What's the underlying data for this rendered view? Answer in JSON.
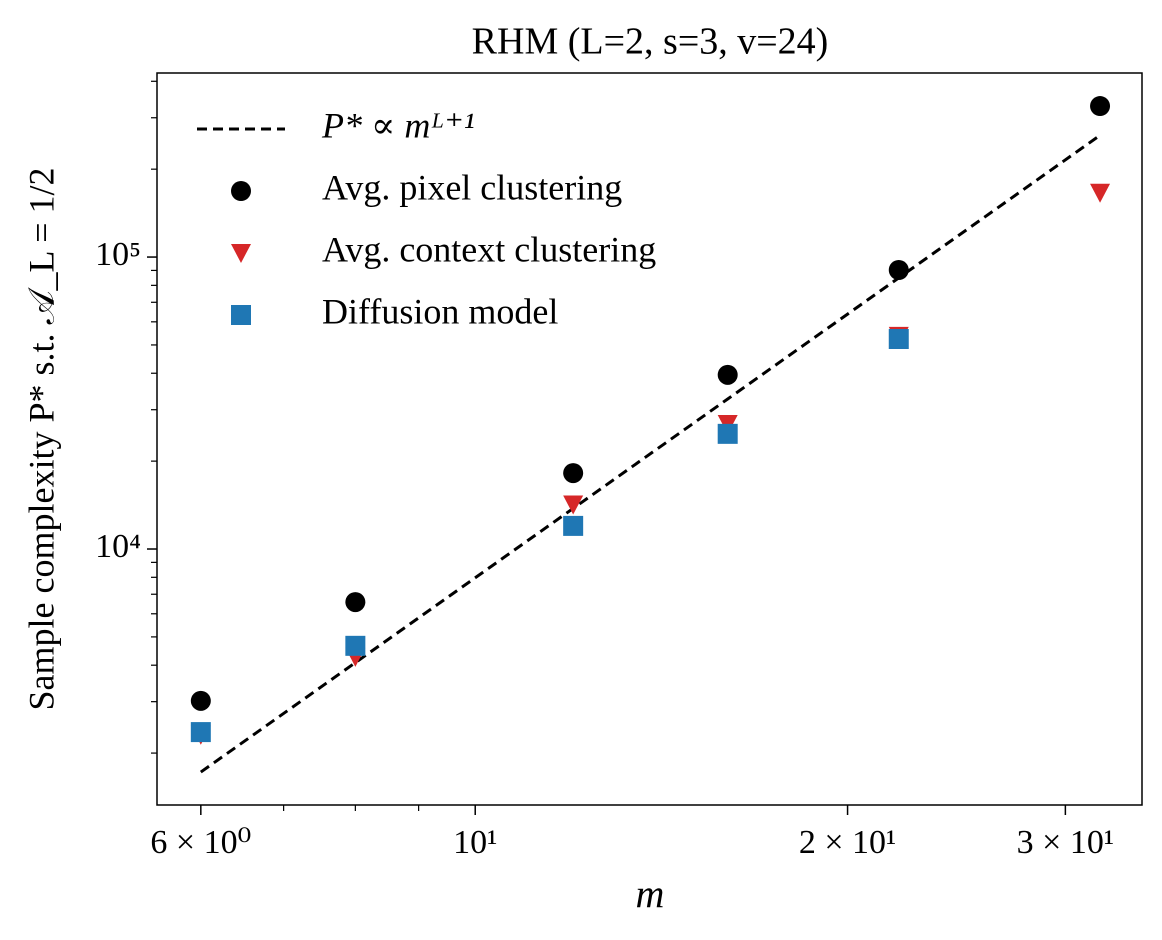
{
  "chart_data": {
    "type": "scatter",
    "title": "RHM (L=2, s=3, v=24)",
    "x_label": "m",
    "y_label": "Sample complexity P* s.t. 𝒜_L = 1/2",
    "x": [
      6,
      8,
      12,
      16,
      22,
      32
    ],
    "series": [
      {
        "name": "P* ∝ mᴸ⁺¹",
        "kind": "line",
        "color": "#000000",
        "values": [
          1722,
          4081,
          13774,
          32650,
          84870,
          261200
        ]
      },
      {
        "name": "Avg. pixel clustering",
        "kind": "circle",
        "color": "#000000",
        "values": [
          3020,
          6580,
          18200,
          39500,
          90300,
          329000
        ]
      },
      {
        "name": "Avg. context clustering",
        "kind": "triangle",
        "color": "#d62728",
        "values": [
          2310,
          4270,
          14200,
          26800,
          53700,
          166000
        ]
      },
      {
        "name": "Diffusion model",
        "kind": "square",
        "color": "#1f77b4",
        "values": [
          2360,
          4660,
          12000,
          24800,
          52400,
          null
        ]
      }
    ],
    "xlog": true,
    "ylog": true,
    "xlim": [
      5.53,
      34.6
    ],
    "ylim": [
      1328,
      427000
    ],
    "xticks": [
      {
        "value": 6,
        "label": "6 × 10⁰"
      },
      {
        "value": 10,
        "label": "10¹"
      },
      {
        "value": 20,
        "label": "2 × 10¹"
      },
      {
        "value": 30,
        "label": "3 × 10¹"
      }
    ],
    "xminor": [
      7,
      8,
      9
    ],
    "yticks": [
      {
        "value": 10000,
        "label": "10⁴"
      },
      {
        "value": 100000,
        "label": "10⁵"
      }
    ],
    "yminor": [
      2000,
      3000,
      4000,
      5000,
      6000,
      7000,
      8000,
      9000,
      20000,
      30000,
      40000,
      50000,
      60000,
      70000,
      80000,
      90000,
      200000,
      300000,
      400000
    ],
    "legend": "upper left",
    "grid": false
  }
}
